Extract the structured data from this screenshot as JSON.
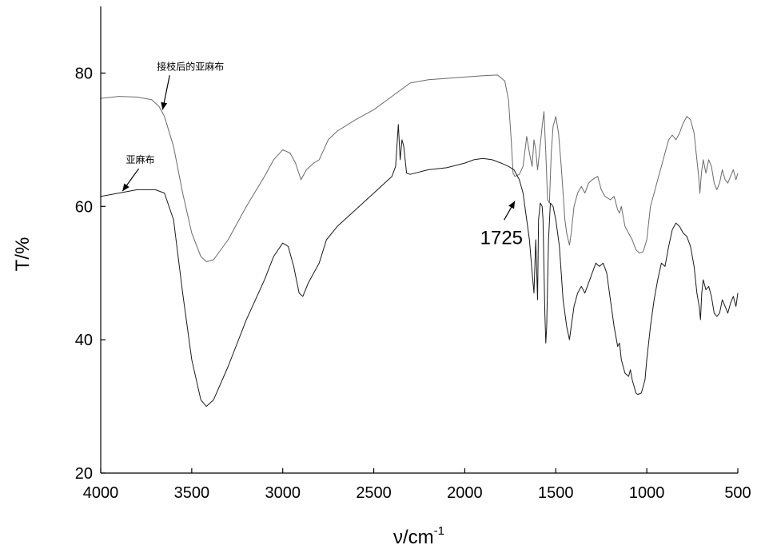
{
  "chart_data": {
    "type": "line",
    "xlabel_main": "ν/cm",
    "xlabel_sup": "-1",
    "ylabel": "T/%",
    "xlim": [
      4000,
      500
    ],
    "ylim": [
      20,
      90
    ],
    "x_ticks": [
      4000,
      3500,
      3000,
      2500,
      2000,
      1500,
      1000,
      500
    ],
    "y_ticks": [
      20,
      40,
      60,
      80
    ],
    "grid": false,
    "colors": {
      "grafted": "#6a6a6a",
      "plain": "#1a1a1a"
    },
    "series": [
      {
        "name": "接枝后的亚麻布",
        "points": [
          [
            4000,
            76.2
          ],
          [
            3900,
            76.5
          ],
          [
            3800,
            76.4
          ],
          [
            3720,
            76.0
          ],
          [
            3680,
            75.0
          ],
          [
            3650,
            73.5
          ],
          [
            3600,
            69.0
          ],
          [
            3550,
            62.0
          ],
          [
            3500,
            56.0
          ],
          [
            3450,
            52.5
          ],
          [
            3420,
            51.7
          ],
          [
            3380,
            52.0
          ],
          [
            3300,
            55.0
          ],
          [
            3200,
            60.0
          ],
          [
            3100,
            64.5
          ],
          [
            3050,
            67.0
          ],
          [
            3000,
            68.5
          ],
          [
            2960,
            68.0
          ],
          [
            2930,
            66.5
          ],
          [
            2900,
            64.0
          ],
          [
            2870,
            65.5
          ],
          [
            2830,
            66.5
          ],
          [
            2800,
            67.0
          ],
          [
            2750,
            70.0
          ],
          [
            2700,
            71.3
          ],
          [
            2600,
            73.0
          ],
          [
            2500,
            74.5
          ],
          [
            2400,
            76.5
          ],
          [
            2300,
            78.5
          ],
          [
            2200,
            79.0
          ],
          [
            2100,
            79.2
          ],
          [
            2000,
            79.4
          ],
          [
            1900,
            79.6
          ],
          [
            1820,
            79.7
          ],
          [
            1780,
            78.8
          ],
          [
            1760,
            76.0
          ],
          [
            1745,
            70.0
          ],
          [
            1735,
            65.0
          ],
          [
            1725,
            64.5
          ],
          [
            1700,
            64.8
          ],
          [
            1680,
            66.0
          ],
          [
            1660,
            70.5
          ],
          [
            1645,
            68.0
          ],
          [
            1630,
            66.0
          ],
          [
            1620,
            70.0
          ],
          [
            1610,
            68.5
          ],
          [
            1600,
            65.5
          ],
          [
            1590,
            68.0
          ],
          [
            1575,
            72.0
          ],
          [
            1565,
            74.2
          ],
          [
            1555,
            68.0
          ],
          [
            1545,
            61.0
          ],
          [
            1535,
            60.5
          ],
          [
            1525,
            68.0
          ],
          [
            1515,
            72.0
          ],
          [
            1500,
            73.5
          ],
          [
            1485,
            71.0
          ],
          [
            1470,
            66.0
          ],
          [
            1450,
            58.0
          ],
          [
            1440,
            56.0
          ],
          [
            1425,
            54.2
          ],
          [
            1415,
            56.0
          ],
          [
            1400,
            60.0
          ],
          [
            1380,
            62.0
          ],
          [
            1360,
            63.0
          ],
          [
            1340,
            62.0
          ],
          [
            1320,
            63.5
          ],
          [
            1300,
            64.0
          ],
          [
            1270,
            64.5
          ],
          [
            1250,
            62.5
          ],
          [
            1230,
            61.5
          ],
          [
            1200,
            61.0
          ],
          [
            1180,
            61.5
          ],
          [
            1160,
            59.5
          ],
          [
            1150,
            59.0
          ],
          [
            1140,
            60.0
          ],
          [
            1120,
            57.0
          ],
          [
            1100,
            56.0
          ],
          [
            1080,
            55.0
          ],
          [
            1060,
            53.5
          ],
          [
            1040,
            53.0
          ],
          [
            1020,
            53.2
          ],
          [
            1000,
            55.0
          ],
          [
            980,
            60.0
          ],
          [
            960,
            62.0
          ],
          [
            940,
            64.0
          ],
          [
            920,
            66.0
          ],
          [
            900,
            68.0
          ],
          [
            880,
            70.0
          ],
          [
            860,
            70.7
          ],
          [
            840,
            70.0
          ],
          [
            820,
            71.0
          ],
          [
            800,
            72.5
          ],
          [
            780,
            73.5
          ],
          [
            760,
            73.0
          ],
          [
            740,
            71.0
          ],
          [
            725,
            67.0
          ],
          [
            715,
            64.5
          ],
          [
            708,
            62.0
          ],
          [
            700,
            65.0
          ],
          [
            690,
            67.0
          ],
          [
            675,
            65.0
          ],
          [
            660,
            67.0
          ],
          [
            645,
            66.0
          ],
          [
            630,
            63.5
          ],
          [
            615,
            62.5
          ],
          [
            600,
            63.5
          ],
          [
            585,
            65.5
          ],
          [
            570,
            64.0
          ],
          [
            555,
            63.5
          ],
          [
            540,
            64.5
          ],
          [
            525,
            65.5
          ],
          [
            510,
            64.0
          ],
          [
            500,
            65.0
          ]
        ]
      },
      {
        "name": "亚麻布",
        "points": [
          [
            4000,
            61.5
          ],
          [
            3900,
            62.0
          ],
          [
            3800,
            62.5
          ],
          [
            3700,
            62.5
          ],
          [
            3650,
            62.0
          ],
          [
            3600,
            58.0
          ],
          [
            3550,
            47.0
          ],
          [
            3500,
            37.0
          ],
          [
            3450,
            31.0
          ],
          [
            3420,
            30.0
          ],
          [
            3380,
            31.0
          ],
          [
            3300,
            36.0
          ],
          [
            3200,
            43.0
          ],
          [
            3100,
            49.0
          ],
          [
            3050,
            52.5
          ],
          [
            3000,
            54.5
          ],
          [
            2970,
            54.0
          ],
          [
            2940,
            51.0
          ],
          [
            2910,
            47.0
          ],
          [
            2890,
            46.5
          ],
          [
            2860,
            48.5
          ],
          [
            2830,
            50.0
          ],
          [
            2800,
            51.5
          ],
          [
            2760,
            55.0
          ],
          [
            2700,
            57.0
          ],
          [
            2600,
            59.5
          ],
          [
            2500,
            62.0
          ],
          [
            2400,
            64.5
          ],
          [
            2380,
            66.0
          ],
          [
            2365,
            72.3
          ],
          [
            2355,
            67.0
          ],
          [
            2345,
            70.0
          ],
          [
            2335,
            69.0
          ],
          [
            2320,
            65.0
          ],
          [
            2300,
            64.8
          ],
          [
            2200,
            65.5
          ],
          [
            2100,
            65.8
          ],
          [
            2000,
            66.5
          ],
          [
            1950,
            67.0
          ],
          [
            1900,
            67.2
          ],
          [
            1850,
            67.0
          ],
          [
            1800,
            66.5
          ],
          [
            1760,
            66.0
          ],
          [
            1730,
            65.5
          ],
          [
            1700,
            64.0
          ],
          [
            1680,
            62.0
          ],
          [
            1660,
            58.0
          ],
          [
            1645,
            55.0
          ],
          [
            1630,
            50.0
          ],
          [
            1620,
            47.0
          ],
          [
            1610,
            55.0
          ],
          [
            1600,
            46.0
          ],
          [
            1595,
            58.0
          ],
          [
            1585,
            60.5
          ],
          [
            1575,
            60.0
          ],
          [
            1570,
            58.0
          ],
          [
            1560,
            44.0
          ],
          [
            1555,
            39.5
          ],
          [
            1550,
            42.0
          ],
          [
            1540,
            55.0
          ],
          [
            1530,
            60.5
          ],
          [
            1515,
            60.0
          ],
          [
            1500,
            58.0
          ],
          [
            1480,
            54.0
          ],
          [
            1460,
            46.0
          ],
          [
            1440,
            42.0
          ],
          [
            1425,
            40.0
          ],
          [
            1415,
            42.0
          ],
          [
            1400,
            45.0
          ],
          [
            1380,
            47.0
          ],
          [
            1360,
            48.0
          ],
          [
            1340,
            47.0
          ],
          [
            1320,
            48.5
          ],
          [
            1300,
            50.0
          ],
          [
            1280,
            51.5
          ],
          [
            1260,
            51.0
          ],
          [
            1240,
            51.5
          ],
          [
            1220,
            50.0
          ],
          [
            1200,
            46.0
          ],
          [
            1180,
            42.0
          ],
          [
            1160,
            39.0
          ],
          [
            1150,
            39.5
          ],
          [
            1140,
            37.0
          ],
          [
            1120,
            35.0
          ],
          [
            1100,
            34.5
          ],
          [
            1090,
            35.5
          ],
          [
            1080,
            34.0
          ],
          [
            1070,
            33.0
          ],
          [
            1060,
            32.0
          ],
          [
            1050,
            31.8
          ],
          [
            1030,
            32.0
          ],
          [
            1010,
            34.0
          ],
          [
            1000,
            37.0
          ],
          [
            980,
            42.0
          ],
          [
            960,
            46.0
          ],
          [
            940,
            49.0
          ],
          [
            920,
            51.5
          ],
          [
            900,
            51.0
          ],
          [
            880,
            54.0
          ],
          [
            860,
            56.5
          ],
          [
            840,
            57.5
          ],
          [
            820,
            57.0
          ],
          [
            800,
            56.0
          ],
          [
            780,
            55.5
          ],
          [
            760,
            54.0
          ],
          [
            740,
            51.0
          ],
          [
            725,
            47.0
          ],
          [
            712,
            45.0
          ],
          [
            705,
            43.0
          ],
          [
            698,
            47.0
          ],
          [
            690,
            49.0
          ],
          [
            675,
            47.5
          ],
          [
            660,
            48.0
          ],
          [
            645,
            46.5
          ],
          [
            630,
            44.0
          ],
          [
            615,
            43.5
          ],
          [
            600,
            44.0
          ],
          [
            585,
            46.0
          ],
          [
            570,
            45.0
          ],
          [
            555,
            44.0
          ],
          [
            540,
            45.5
          ],
          [
            525,
            46.5
          ],
          [
            510,
            45.0
          ],
          [
            500,
            47.0
          ]
        ]
      }
    ],
    "annotations": [
      {
        "text": "接枝后的亚麻布",
        "x": 3630,
        "y": 80.5,
        "target": [
          3660,
          74.5
        ]
      },
      {
        "text": "亚麻布",
        "x": 3800,
        "y": 66.5,
        "target": [
          3880,
          62.3
        ]
      },
      {
        "text": "1725",
        "x": 1740,
        "y": 55.8,
        "target": [
          1725,
          60.8
        ]
      }
    ]
  }
}
